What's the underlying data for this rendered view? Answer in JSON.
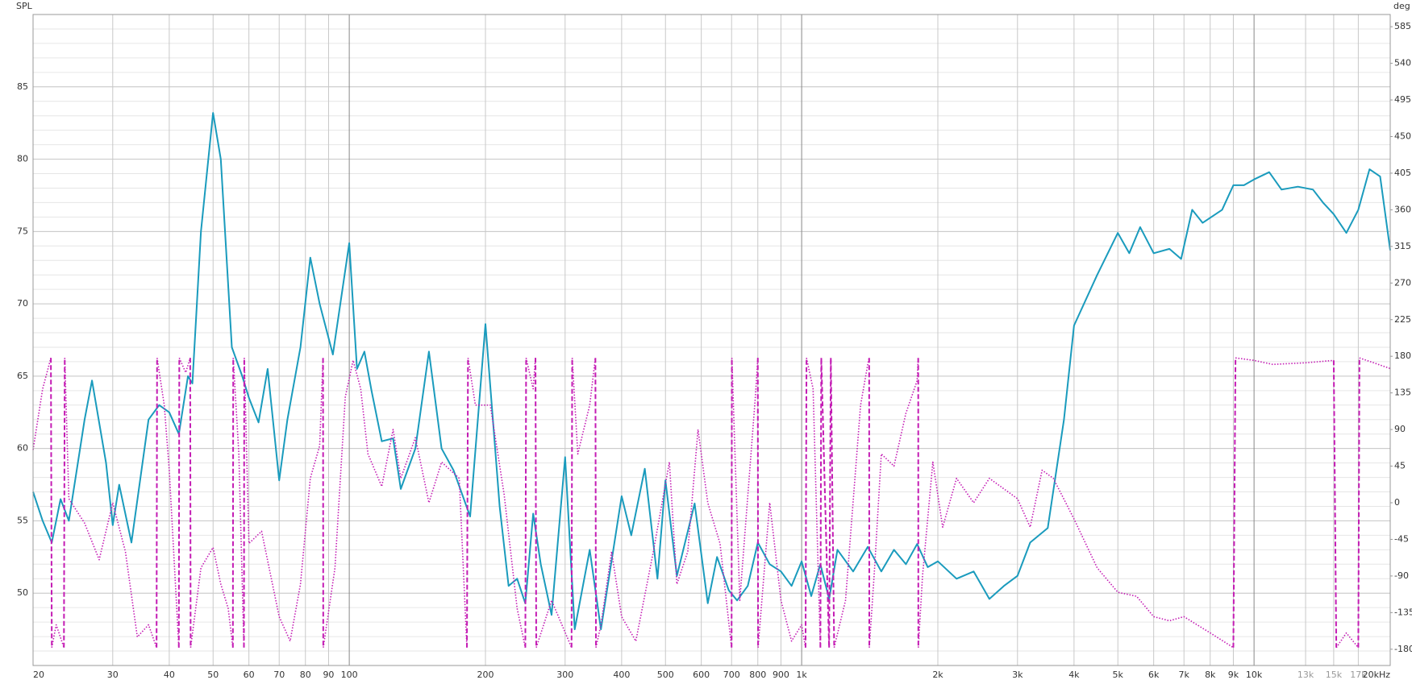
{
  "chart_data": {
    "type": "line",
    "y_label": "SPL",
    "y2_label": "deg",
    "log_x": true,
    "grid": true,
    "xlim": [
      20,
      20000
    ],
    "ylim": [
      45,
      90
    ],
    "y2lim": [
      -200,
      600
    ],
    "xticks": [
      20,
      30,
      40,
      50,
      60,
      70,
      80,
      90,
      100,
      200,
      300,
      400,
      500,
      600,
      700,
      800,
      900,
      {
        "value": 1000,
        "label": "1k"
      },
      {
        "value": 2000,
        "label": "2k"
      },
      {
        "value": 3000,
        "label": "3k"
      },
      {
        "value": 4000,
        "label": "4k"
      },
      {
        "value": 5000,
        "label": "5k"
      },
      {
        "value": 6000,
        "label": "6k"
      },
      {
        "value": 7000,
        "label": "7k"
      },
      {
        "value": 8000,
        "label": "8k"
      },
      {
        "value": 9000,
        "label": "9k"
      },
      {
        "value": 10000,
        "label": "10k"
      },
      {
        "value": 13000,
        "label": "13k"
      },
      {
        "value": 15000,
        "label": "15k"
      },
      {
        "value": 17000,
        "label": "17k"
      },
      {
        "value": 20000,
        "label": "20kHz"
      }
    ],
    "yticks": [
      50,
      55,
      60,
      65,
      70,
      75,
      80,
      85
    ],
    "y2ticks": [
      -180,
      -135,
      -90,
      -45,
      0,
      45,
      90,
      135,
      180,
      225,
      270,
      315,
      360,
      405,
      450,
      495,
      540,
      585
    ],
    "series": [
      {
        "color": "#1a9bbd",
        "style": "solid",
        "x": [
          20,
          21,
          22,
          23,
          24,
          26,
          27,
          29,
          30,
          31,
          33,
          36,
          38,
          40,
          42,
          44,
          45,
          47,
          50,
          52,
          55,
          58,
          60,
          63,
          66,
          70,
          73,
          78,
          82,
          86,
          92,
          100,
          104,
          108,
          112,
          118,
          125,
          130,
          140,
          150,
          160,
          170,
          185,
          200,
          215,
          225,
          235,
          245,
          255,
          265,
          280,
          300,
          315,
          340,
          360,
          400,
          420,
          450,
          480,
          500,
          530,
          580,
          620,
          650,
          690,
          720,
          760,
          800,
          850,
          900,
          950,
          1000,
          1050,
          1100,
          1150,
          1200,
          1300,
          1400,
          1500,
          1600,
          1700,
          1800,
          1900,
          2000,
          2200,
          2400,
          2600,
          2800,
          3000,
          3200,
          3500,
          3800,
          4000,
          4500,
          5000,
          5300,
          5600,
          6000,
          6500,
          6900,
          7300,
          7700,
          8500,
          9000,
          9500,
          10000,
          10800,
          11500,
          12500,
          13500,
          14200,
          15000,
          16000,
          17000,
          18000,
          19000,
          20000
        ],
        "values": [
          57,
          55,
          53.5,
          56.5,
          55,
          62,
          64.7,
          59,
          54.7,
          57.5,
          53.5,
          62,
          63,
          62.5,
          61,
          65,
          64.5,
          75,
          83.2,
          80,
          67,
          65,
          63.5,
          61.8,
          65.5,
          57.8,
          62,
          67,
          73.2,
          70,
          66.5,
          74.2,
          65.5,
          66.7,
          64,
          60.5,
          60.7,
          57.2,
          60,
          66.7,
          60,
          58.5,
          55.3,
          68.6,
          56,
          50.5,
          51,
          49.3,
          55.5,
          52,
          48.5,
          59.4,
          47.5,
          53,
          47.5,
          56.7,
          54,
          58.6,
          51,
          57.8,
          51.2,
          56.2,
          49.3,
          52.5,
          50.2,
          49.5,
          50.5,
          53.5,
          52,
          51.5,
          50.5,
          52.2,
          49.8,
          52,
          49.6,
          53,
          51.5,
          53.2,
          51.5,
          53,
          52,
          53.4,
          51.8,
          52.2,
          51,
          51.5,
          49.6,
          50.5,
          51.2,
          53.5,
          54.5,
          62,
          68.5,
          72,
          74.9,
          73.5,
          75.3,
          73.5,
          73.8,
          73.1,
          76.5,
          75.6,
          76.5,
          78.2,
          78.2,
          78.6,
          79.1,
          77.9,
          78.1,
          77.9,
          77,
          76.2,
          74.9,
          76.5,
          79.3,
          78.8,
          73.7
        ]
      },
      {
        "color": "#c41cb4",
        "style": "dotted",
        "axis": "y2",
        "x": [
          20,
          21,
          21.9,
          22,
          22.5,
          23.4,
          23.5,
          24,
          26,
          28,
          30,
          32,
          34,
          36,
          37.5,
          37.6,
          39,
          40,
          42,
          42.1,
          43.5,
          44.5,
          44.6,
          47,
          50,
          52,
          54,
          55.3,
          55.4,
          57,
          58.5,
          58.6,
          60,
          64,
          70,
          74,
          78,
          82,
          86,
          87.5,
          87.6,
          93,
          98,
          102,
          106,
          110,
          118,
          125,
          130,
          140,
          150,
          160,
          175,
          182,
          183,
          190,
          205,
          220,
          235,
          245,
          246,
          255,
          258,
          259,
          280,
          310,
          311,
          320,
          340,
          350,
          351,
          360,
          380,
          400,
          430,
          470,
          510,
          530,
          560,
          590,
          620,
          660,
          700,
          701,
          730,
          790,
          800,
          801,
          850,
          900,
          950,
          1000,
          1020,
          1025,
          1060,
          1100,
          1105,
          1150,
          1160,
          1180,
          1250,
          1350,
          1400,
          1410,
          1411,
          1450,
          1500,
          1600,
          1700,
          1800,
          1810,
          1811,
          1850,
          1950,
          2050,
          2200,
          2400,
          2600,
          3000,
          3200,
          3400,
          3600,
          4000,
          4500,
          5000,
          5500,
          6000,
          6500,
          7000,
          8000,
          9000,
          9100,
          10000,
          11000,
          13000,
          15000,
          15200,
          16000,
          17000,
          17100,
          20000
        ],
        "values": [
          65,
          140,
          178,
          -178,
          -150,
          -178,
          178,
          5,
          -25,
          -70,
          0,
          -60,
          -165,
          -150,
          -178,
          178,
          120,
          40,
          -178,
          178,
          160,
          178,
          -178,
          -80,
          -55,
          -100,
          -130,
          -178,
          178,
          60,
          -178,
          178,
          -50,
          -35,
          -140,
          -170,
          -100,
          30,
          70,
          178,
          -178,
          -80,
          130,
          175,
          140,
          60,
          20,
          90,
          30,
          80,
          0,
          50,
          30,
          -178,
          178,
          120,
          120,
          10,
          -130,
          -178,
          178,
          140,
          178,
          -178,
          -120,
          -178,
          178,
          60,
          120,
          178,
          -178,
          -150,
          -60,
          -140,
          -170,
          -60,
          50,
          -100,
          -60,
          90,
          0,
          -50,
          -178,
          178,
          -120,
          130,
          178,
          -178,
          0,
          -120,
          -170,
          -150,
          -178,
          178,
          140,
          -178,
          178,
          -178,
          178,
          -178,
          -120,
          120,
          170,
          178,
          -178,
          -80,
          60,
          45,
          110,
          150,
          178,
          -178,
          -90,
          50,
          -30,
          30,
          0,
          30,
          5,
          -30,
          40,
          30,
          -20,
          -80,
          -110,
          -115,
          -140,
          -145,
          -140,
          -160,
          -178,
          178,
          175,
          170,
          172,
          175,
          -178,
          -160,
          -178,
          178,
          165
        ]
      }
    ]
  }
}
